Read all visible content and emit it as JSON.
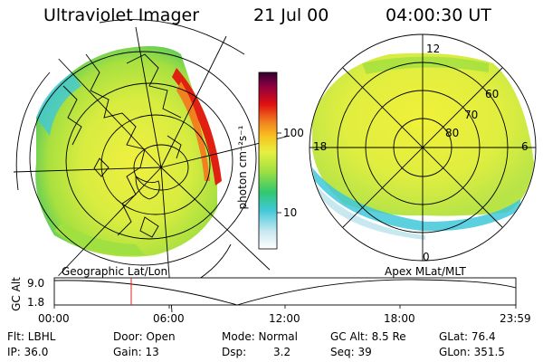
{
  "header": {
    "title": "Ultraviolet Imager",
    "date": "21 Jul 00",
    "time": "04:00:30 UT"
  },
  "colorbar": {
    "label": "photon cm⁻²s⁻¹",
    "ticks": [
      "100",
      "10"
    ]
  },
  "left_panel": {
    "caption": "Geographic Lat/Lon"
  },
  "right_panel": {
    "caption": "Apex MLat/MLT",
    "mlt_labels": [
      "12",
      "18",
      "6",
      "0"
    ],
    "lat_labels": [
      "60",
      "70",
      "80"
    ]
  },
  "timeline": {
    "ylabel": "GC Alt",
    "y_ticks": [
      "9.0",
      "1.8"
    ],
    "x_ticks": [
      "00:00",
      "06:00",
      "12:00",
      "18:00",
      "23:59"
    ],
    "marker_time": "04:00:30"
  },
  "info": {
    "row1": [
      "Flt: LBHL",
      "Door: Open",
      "Mode: Normal",
      "GC Alt: 8.5 Re",
      "GLat:  76.4"
    ],
    "row2": [
      "IP: 36.0",
      "Gain: 13",
      "Dsp:",
      "3.2",
      "Seq: 39",
      "GLon: 351.5"
    ]
  },
  "colors": {
    "scale": [
      "#ffffff",
      "#c8e8f0",
      "#40c8d8",
      "#30c870",
      "#a0e040",
      "#e8f040",
      "#f8c020",
      "#f08020",
      "#e01010",
      "#900040",
      "#400040"
    ]
  }
}
